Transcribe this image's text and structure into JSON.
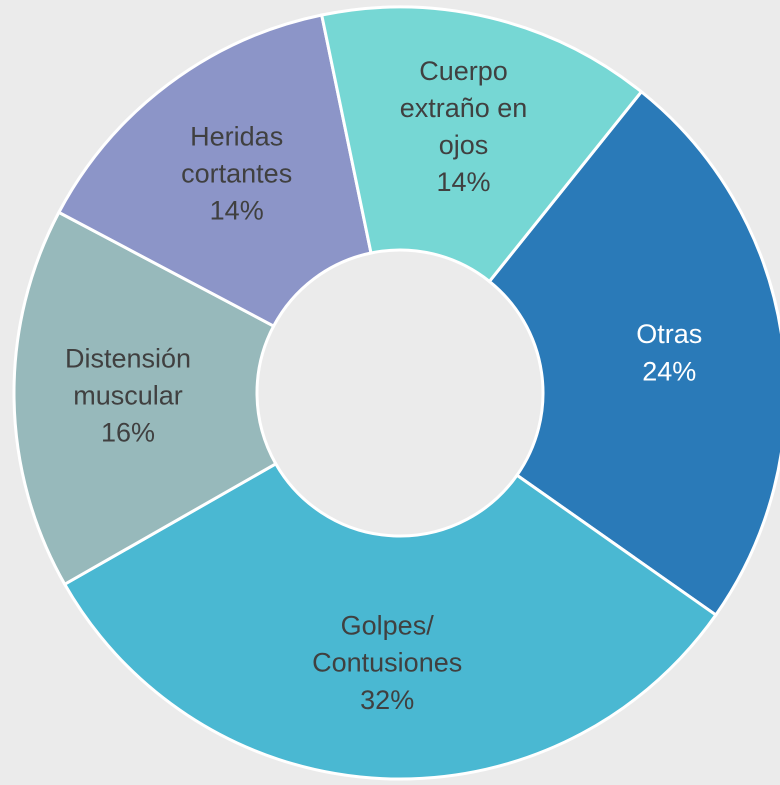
{
  "chart_data": {
    "type": "donut",
    "categories": [
      "Otras",
      "Golpes/Contusiones",
      "Distensión muscular",
      "Heridas cortantes",
      "Cuerpo extraño en ojos"
    ],
    "values": [
      24,
      32,
      16,
      14,
      14
    ],
    "value_labels": [
      "24%",
      "32%",
      "16%",
      "14%",
      "14%"
    ],
    "colors": [
      "#2a7ab8",
      "#4ab8d2",
      "#97b9bb",
      "#8c95c8",
      "#76d7d4"
    ]
  }
}
